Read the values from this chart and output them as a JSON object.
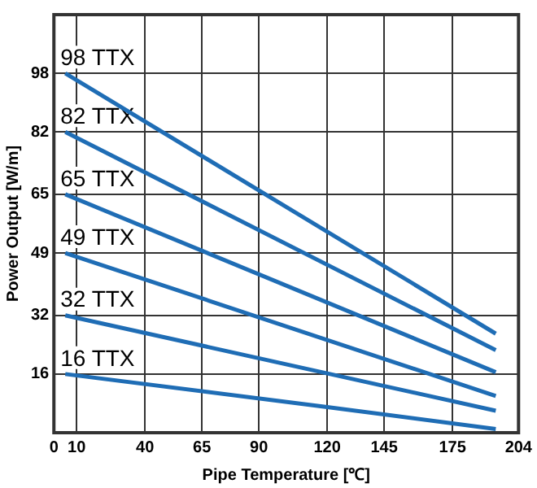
{
  "chart_data": {
    "type": "line",
    "xlabel": "Pipe Temperature [℃]",
    "ylabel": "Power Output [W/m]",
    "xlim": [
      0,
      204
    ],
    "xticks": [
      0,
      10,
      40,
      65,
      90,
      120,
      145,
      175,
      204
    ],
    "ylim": [
      0,
      114
    ],
    "yticks": [
      16,
      32,
      49,
      65,
      82,
      98
    ],
    "grid": true,
    "legend": false,
    "marker": "none",
    "line_style": "solid",
    "series": [
      {
        "name": "98 TTX",
        "color": "#1f6db5",
        "x": [
          5,
          194
        ],
        "values": [
          98,
          27
        ]
      },
      {
        "name": "82 TTX",
        "color": "#1f6db5",
        "x": [
          5,
          194
        ],
        "values": [
          82,
          22.5
        ]
      },
      {
        "name": "65 TTX",
        "color": "#1f6db5",
        "x": [
          5,
          194
        ],
        "values": [
          65,
          16.5
        ]
      },
      {
        "name": "49 TTX",
        "color": "#1f6db5",
        "x": [
          5,
          194
        ],
        "values": [
          49,
          10
        ]
      },
      {
        "name": "32 TTX",
        "color": "#1f6db5",
        "x": [
          5,
          194
        ],
        "values": [
          32,
          6
        ]
      },
      {
        "name": "16 TTX",
        "color": "#1f6db5",
        "x": [
          5,
          120,
          194
        ],
        "values": [
          16,
          7,
          1
        ]
      }
    ]
  }
}
